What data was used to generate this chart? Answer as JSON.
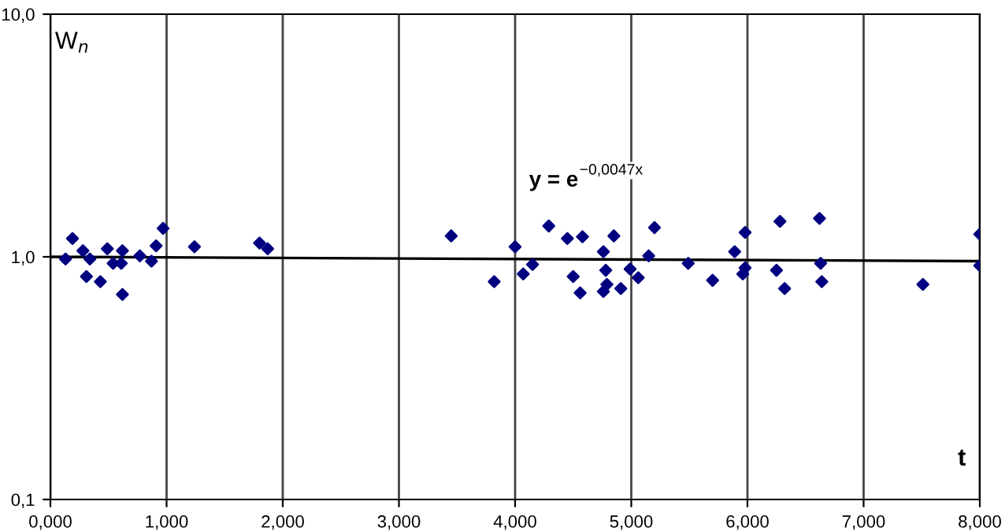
{
  "chart_data": {
    "type": "scatter",
    "xlabel": "t",
    "ylabel": "W$_{n}$",
    "annotations": [
      "y = e$^{−0,0047x}$"
    ],
    "log": "y",
    "grid": "x",
    "xlim": [
      0,
      8
    ],
    "xticks": [
      {
        "value": 0,
        "label": "0,000"
      },
      {
        "value": 1,
        "label": "1,000"
      },
      {
        "value": 2,
        "label": "2,000"
      },
      {
        "value": 3,
        "label": "3,000"
      },
      {
        "value": 4,
        "label": "4,000"
      },
      {
        "value": 5,
        "label": "5,000"
      },
      {
        "value": 6,
        "label": "6,000"
      },
      {
        "value": 7,
        "label": "7,000"
      },
      {
        "value": 8,
        "label": "8,000"
      }
    ],
    "ylim": [
      0.1,
      10
    ],
    "yticks": [
      {
        "value": 0.1,
        "label": "0,1"
      },
      {
        "value": 1,
        "label": "1,0"
      },
      {
        "value": 10,
        "label": "10,0"
      }
    ],
    "series": [
      {
        "marker": "diamond",
        "color": "#000080",
        "x": [
          0.13,
          0.19,
          0.28,
          0.31,
          0.34,
          0.43,
          0.49,
          0.54,
          0.61,
          0.62,
          0.62,
          0.77,
          0.87,
          0.91,
          0.97,
          1.24,
          1.8,
          1.87,
          3.45,
          3.82,
          4.0,
          4.07,
          4.15,
          4.29,
          4.45,
          4.5,
          4.56,
          4.58,
          4.76,
          4.76,
          4.78,
          4.79,
          4.85,
          4.91,
          4.99,
          5.06,
          5.15,
          5.2,
          5.49,
          5.7,
          5.89,
          5.96,
          5.98,
          5.98,
          6.25,
          6.28,
          6.32,
          6.62,
          6.63,
          6.64,
          7.51,
          8.0,
          8.0
        ],
        "values": [
          0.98,
          1.19,
          1.06,
          0.83,
          0.98,
          0.79,
          1.08,
          0.94,
          0.94,
          1.06,
          0.7,
          1.01,
          0.96,
          1.11,
          1.31,
          1.1,
          1.14,
          1.08,
          1.22,
          0.79,
          1.1,
          0.85,
          0.93,
          1.34,
          1.19,
          0.83,
          0.71,
          1.21,
          1.05,
          0.72,
          0.88,
          0.77,
          1.22,
          0.74,
          0.89,
          0.82,
          1.01,
          1.32,
          0.94,
          0.8,
          1.05,
          0.85,
          0.9,
          1.26,
          0.88,
          1.4,
          0.74,
          1.44,
          0.94,
          0.79,
          0.77,
          1.24,
          0.92
        ]
      },
      {
        "type": "line",
        "marker": "none",
        "color": "#000000",
        "x": [
          0,
          8
        ],
        "values": [
          1.0,
          0.96
        ]
      }
    ]
  }
}
